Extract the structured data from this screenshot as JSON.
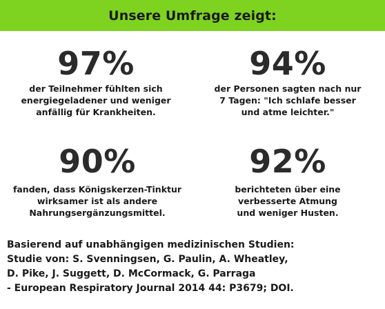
{
  "banner": {
    "title": "Unsere Umfrage zeigt:",
    "background_color": "#7ed321"
  },
  "stats": [
    {
      "value": "97%",
      "caption": "der Teilnehmer fühlten sich\nenergiegeladener und weniger\nanfällig für Krankheiten."
    },
    {
      "value": "94%",
      "caption": "der Personen sagten nach nur\n7 Tagen: \"Ich schlafe besser\nund atme leichter.\""
    },
    {
      "value": "90%",
      "caption": "fanden, dass Königskerzen-Tinktur\nwirksamer ist als andere\nNahrungsergänzungsmittel."
    },
    {
      "value": "92%",
      "caption": "berichteten über eine\nverbesserte Atmung\nund weniger Husten."
    }
  ],
  "source": {
    "lines": [
      "Basierend auf unabhängigen medizinischen Studien:",
      "Studie von: S. Svenningsen, G. Paulin, A. Wheatley,",
      "D. Pike, J. Suggett, D. McCormack, G. Parraga",
      "- European Respiratory Journal 2014 44: P3679; DOI."
    ]
  }
}
